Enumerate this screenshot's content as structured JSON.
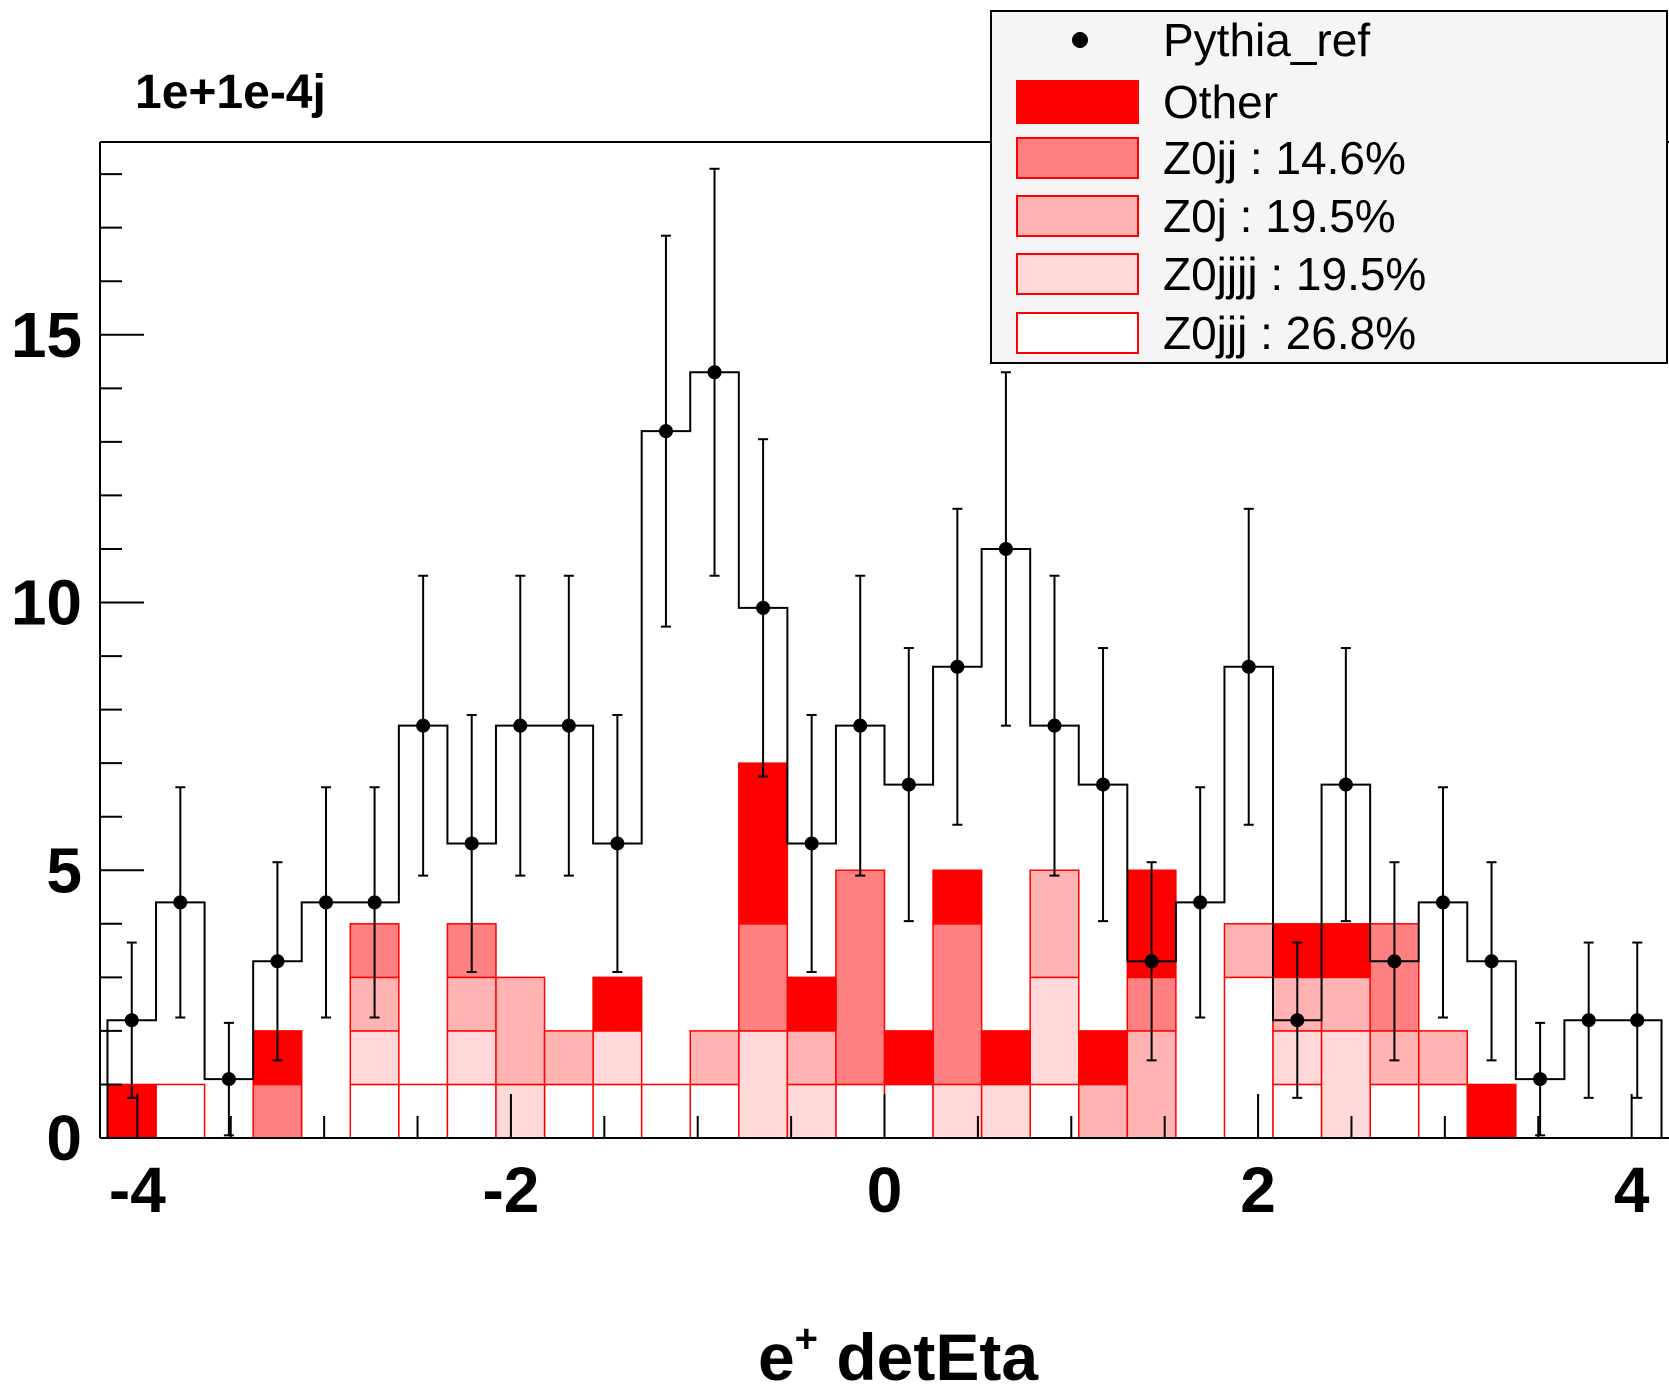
{
  "chart_data": {
    "type": "bar",
    "title": "1e+1e-4j",
    "xlabel_main": "e",
    "xlabel_sup": "+",
    "xlabel_rest": " detEta",
    "ylabel": "",
    "xlim": [
      -4.2,
      4.2
    ],
    "ylim": [
      0,
      18.6
    ],
    "bin_width": 0.26,
    "x_ticks": [
      {
        "value": -4,
        "label": "-4"
      },
      {
        "value": -2,
        "label": "-2"
      },
      {
        "value": 0,
        "label": "0"
      },
      {
        "value": 2,
        "label": "2"
      },
      {
        "value": 4,
        "label": "4"
      }
    ],
    "y_ticks": [
      {
        "value": 0,
        "label": "0"
      },
      {
        "value": 5,
        "label": "5"
      },
      {
        "value": 10,
        "label": "10"
      },
      {
        "value": 15,
        "label": "15"
      }
    ],
    "bin_centers": [
      -4.03,
      -3.77,
      -3.51,
      -3.25,
      -2.99,
      -2.73,
      -2.47,
      -2.21,
      -1.95,
      -1.69,
      -1.43,
      -1.17,
      -0.91,
      -0.65,
      -0.39,
      -0.13,
      0.13,
      0.39,
      0.65,
      0.91,
      1.17,
      1.43,
      1.69,
      1.95,
      2.21,
      2.47,
      2.73,
      2.99,
      3.25,
      3.51,
      3.77,
      4.03
    ],
    "stack_series": [
      {
        "name": "Z0jjj : 26.8%",
        "color": "#ffffff",
        "values": [
          0,
          1,
          0,
          0,
          0,
          1,
          1,
          1,
          0,
          1,
          1,
          1,
          1,
          0,
          0,
          1,
          1,
          0,
          0,
          1,
          0,
          0,
          0,
          3,
          1,
          0,
          1,
          1,
          0,
          0,
          0,
          0
        ]
      },
      {
        "name": "Z0jjjj : 19.5%",
        "color": "#ffd9da",
        "values": [
          0,
          0,
          0,
          0,
          0,
          1,
          0,
          1,
          1,
          0,
          1,
          0,
          0,
          2,
          1,
          0,
          0,
          1,
          1,
          2,
          0,
          0,
          0,
          0,
          1,
          2,
          0,
          0,
          0,
          0,
          0,
          0
        ]
      },
      {
        "name": "Z0j : 19.5%",
        "color": "#ffb3b3",
        "values": [
          0,
          0,
          0,
          0,
          0,
          1,
          0,
          1,
          2,
          1,
          0,
          0,
          1,
          0,
          1,
          0,
          0,
          0,
          0,
          2,
          1,
          2,
          0,
          1,
          1,
          1,
          1,
          1,
          0,
          0,
          0,
          0
        ]
      },
      {
        "name": "Z0jj : 14.6%",
        "color": "#ff8080",
        "values": [
          0,
          0,
          0,
          1,
          0,
          1,
          0,
          1,
          0,
          0,
          0,
          0,
          0,
          2,
          0,
          4,
          0,
          3,
          0,
          0,
          0,
          1,
          0,
          0,
          0,
          0,
          2,
          0,
          0,
          0,
          0,
          0
        ]
      },
      {
        "name": "Other",
        "color": "#ff0000",
        "values": [
          1,
          0,
          0,
          1,
          0,
          0,
          0,
          0,
          0,
          0,
          1,
          0,
          0,
          3,
          1,
          0,
          1,
          1,
          1,
          0,
          1,
          2,
          0,
          0,
          1,
          1,
          0,
          0,
          1,
          0,
          0,
          0
        ]
      }
    ],
    "reference": {
      "name": "Pythia_ref",
      "values": [
        2.2,
        4.4,
        1.1,
        3.3,
        4.4,
        4.4,
        7.7,
        5.5,
        7.7,
        7.7,
        5.5,
        13.2,
        14.3,
        9.9,
        5.5,
        7.7,
        6.6,
        8.8,
        11.0,
        7.7,
        6.6,
        3.3,
        4.4,
        8.8,
        2.2,
        6.6,
        3.3,
        4.4,
        3.3,
        1.1,
        2.2,
        2.2
      ],
      "errors": [
        1.45,
        2.15,
        1.05,
        1.85,
        2.15,
        2.15,
        2.8,
        2.4,
        2.8,
        2.8,
        2.4,
        3.65,
        3.8,
        3.15,
        2.4,
        2.8,
        2.55,
        2.95,
        3.3,
        2.8,
        2.55,
        1.85,
        2.15,
        2.95,
        1.45,
        2.55,
        1.85,
        2.15,
        1.85,
        1.05,
        1.45,
        1.45
      ]
    },
    "legend": {
      "placement": "top-right",
      "entries": [
        {
          "label": "Pythia_ref",
          "style": "marker",
          "color": "#000000"
        },
        {
          "label": "Other",
          "style": "fill",
          "color": "#ff0000"
        },
        {
          "label": "Z0jj : 14.6%",
          "style": "fill",
          "color": "#ff8080"
        },
        {
          "label": "Z0j : 19.5%",
          "style": "fill",
          "color": "#ffb3b3"
        },
        {
          "label": "Z0jjjj : 19.5%",
          "style": "fill",
          "color": "#ffd9da"
        },
        {
          "label": "Z0jjj : 26.8%",
          "style": "fill",
          "color": "#ffffff"
        }
      ]
    },
    "grid": false
  }
}
